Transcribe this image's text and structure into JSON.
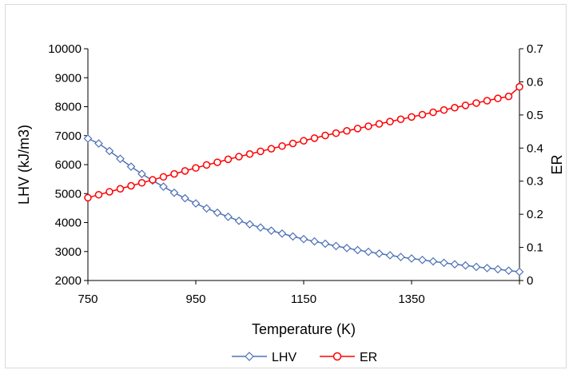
{
  "chart_data": {
    "type": "line",
    "title": "",
    "xlabel": "Temperature (K)",
    "ylabel": "LHV (kJ/m3)",
    "y2label": "ER",
    "xlim": [
      750,
      1550
    ],
    "ylim": [
      2000,
      10000
    ],
    "y2lim": [
      0,
      0.7
    ],
    "x_ticks": [
      "750",
      "950",
      "1150",
      "1350"
    ],
    "y_ticks": [
      "2000",
      "3000",
      "4000",
      "5000",
      "6000",
      "7000",
      "8000",
      "9000",
      "10000"
    ],
    "y2_ticks": [
      "0",
      "0.1",
      "0.2",
      "0.3",
      "0.4",
      "0.5",
      "0.6",
      "0.7"
    ],
    "grid": false,
    "legend_position": "bottom",
    "x": [
      750,
      770,
      790,
      810,
      830,
      850,
      870,
      890,
      910,
      930,
      950,
      970,
      990,
      1010,
      1030,
      1050,
      1070,
      1090,
      1110,
      1130,
      1150,
      1170,
      1190,
      1210,
      1230,
      1250,
      1270,
      1290,
      1310,
      1330,
      1350,
      1370,
      1390,
      1410,
      1430,
      1450,
      1470,
      1490,
      1510,
      1530,
      1550
    ],
    "series": [
      {
        "name": "LHV",
        "axis": "left",
        "color": "#4f72b8",
        "marker": "diamond",
        "values": [
          6900,
          6730,
          6470,
          6200,
          5930,
          5680,
          5450,
          5240,
          5030,
          4840,
          4660,
          4490,
          4340,
          4200,
          4060,
          3940,
          3830,
          3720,
          3620,
          3520,
          3430,
          3350,
          3270,
          3190,
          3120,
          3050,
          2990,
          2930,
          2870,
          2810,
          2760,
          2710,
          2660,
          2610,
          2560,
          2520,
          2470,
          2430,
          2390,
          2340,
          2300
        ]
      },
      {
        "name": "ER",
        "axis": "right",
        "color": "#ff0000",
        "marker": "circle",
        "values": [
          0.25,
          0.259,
          0.268,
          0.277,
          0.286,
          0.295,
          0.304,
          0.313,
          0.322,
          0.331,
          0.34,
          0.349,
          0.357,
          0.366,
          0.374,
          0.382,
          0.39,
          0.398,
          0.406,
          0.414,
          0.422,
          0.43,
          0.438,
          0.445,
          0.452,
          0.459,
          0.466,
          0.473,
          0.48,
          0.487,
          0.494,
          0.501,
          0.508,
          0.515,
          0.522,
          0.529,
          0.536,
          0.543,
          0.55,
          0.556,
          0.585
        ]
      }
    ]
  }
}
